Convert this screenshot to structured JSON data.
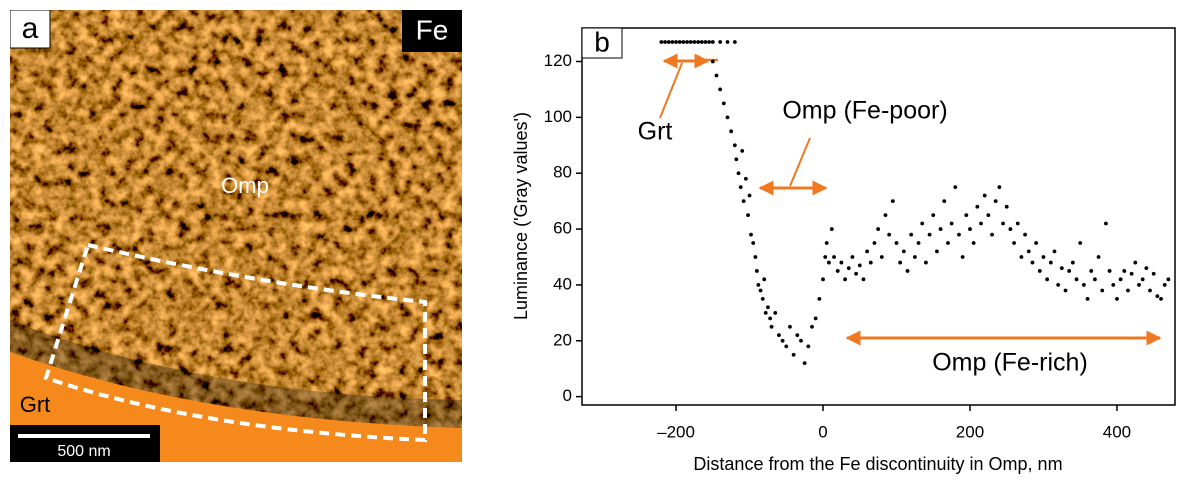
{
  "panel_a": {
    "label": "a",
    "element": "Fe",
    "phase_top": "Omp",
    "phase_bottom": "Grt",
    "scale_bar": "500 nm"
  },
  "chart_data": {
    "type": "scatter",
    "panel_label": "b",
    "x_label": "Distance from the Fe discontinuity in Omp, nm",
    "y_label": "Luminance ('Gray values')",
    "annotations": [
      "Grt",
      "Omp (Fe-poor)",
      "Omp (Fe-rich)"
    ],
    "color": "#000000",
    "xlim": [
      -328,
      479
    ],
    "ylim": [
      -3,
      132
    ],
    "xticks": [
      {
        "value": -200,
        "label": "–200"
      },
      0,
      200,
      400
    ],
    "yticks": [
      0,
      20,
      40,
      60,
      80,
      100,
      120
    ],
    "x": [
      -220,
      -215,
      -210,
      -205,
      -200,
      -195,
      -190,
      -185,
      -180,
      -175,
      -170,
      -165,
      -160,
      -155,
      -150,
      -140,
      -130,
      -120,
      -150,
      -145,
      -140,
      -135,
      -130,
      -125,
      -120,
      -118,
      -115,
      -112,
      -110,
      -108,
      -105,
      -102,
      -100,
      -98,
      -95,
      -92,
      -90,
      -88,
      -85,
      -82,
      -80,
      -78,
      -75,
      -72,
      -70,
      -65,
      -60,
      -55,
      -50,
      -45,
      -40,
      -35,
      -30,
      -25,
      -20,
      -15,
      -10,
      -5,
      0,
      3,
      5,
      8,
      12,
      15,
      20,
      25,
      30,
      35,
      40,
      45,
      50,
      55,
      60,
      65,
      70,
      75,
      80,
      85,
      90,
      95,
      100,
      105,
      110,
      115,
      120,
      125,
      130,
      135,
      140,
      145,
      150,
      155,
      160,
      165,
      170,
      175,
      180,
      185,
      190,
      195,
      200,
      205,
      210,
      215,
      220,
      225,
      230,
      235,
      240,
      245,
      250,
      255,
      260,
      265,
      270,
      275,
      280,
      285,
      290,
      295,
      300,
      305,
      310,
      315,
      320,
      325,
      330,
      335,
      340,
      345,
      350,
      355,
      360,
      365,
      370,
      375,
      380,
      385,
      390,
      395,
      400,
      405,
      410,
      415,
      420,
      425,
      430,
      435,
      440,
      445,
      450,
      455,
      460,
      465,
      470
    ],
    "values": [
      127,
      127,
      127,
      127,
      127,
      127,
      127,
      127,
      127,
      127,
      127,
      127,
      127,
      127,
      127,
      127,
      127,
      127,
      120,
      115,
      110,
      105,
      100,
      95,
      90,
      85,
      80,
      75,
      88,
      70,
      78,
      65,
      72,
      58,
      55,
      50,
      45,
      40,
      38,
      35,
      42,
      30,
      32,
      28,
      25,
      30,
      22,
      20,
      18,
      25,
      15,
      22,
      20,
      12,
      18,
      25,
      28,
      35,
      42,
      50,
      55,
      48,
      60,
      50,
      45,
      48,
      42,
      46,
      50,
      44,
      47,
      42,
      52,
      48,
      55,
      60,
      50,
      65,
      58,
      70,
      55,
      48,
      52,
      45,
      58,
      50,
      55,
      62,
      48,
      58,
      65,
      52,
      60,
      70,
      55,
      62,
      75,
      58,
      50,
      65,
      60,
      55,
      68,
      62,
      72,
      65,
      58,
      70,
      75,
      62,
      68,
      60,
      55,
      62,
      50,
      58,
      52,
      48,
      55,
      45,
      50,
      42,
      48,
      52,
      40,
      46,
      38,
      45,
      48,
      42,
      55,
      40,
      35,
      45,
      42,
      50,
      38,
      62,
      45,
      40,
      35,
      42,
      45,
      38,
      44,
      48,
      40,
      42,
      46,
      38,
      44,
      36,
      35,
      40,
      42
    ]
  }
}
